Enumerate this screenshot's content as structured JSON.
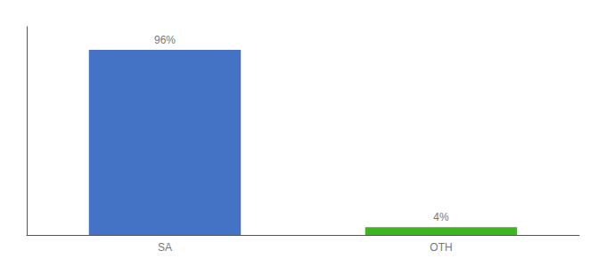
{
  "chart_data": {
    "type": "bar",
    "categories": [
      "SA",
      "OTH"
    ],
    "values": [
      96,
      4
    ],
    "value_labels": [
      "96%",
      "4%"
    ],
    "data_labels": true,
    "colors": [
      "#4472c4",
      "#3cb521"
    ],
    "ylim": [
      0,
      108
    ],
    "grid": false,
    "tick_labels": "x"
  }
}
